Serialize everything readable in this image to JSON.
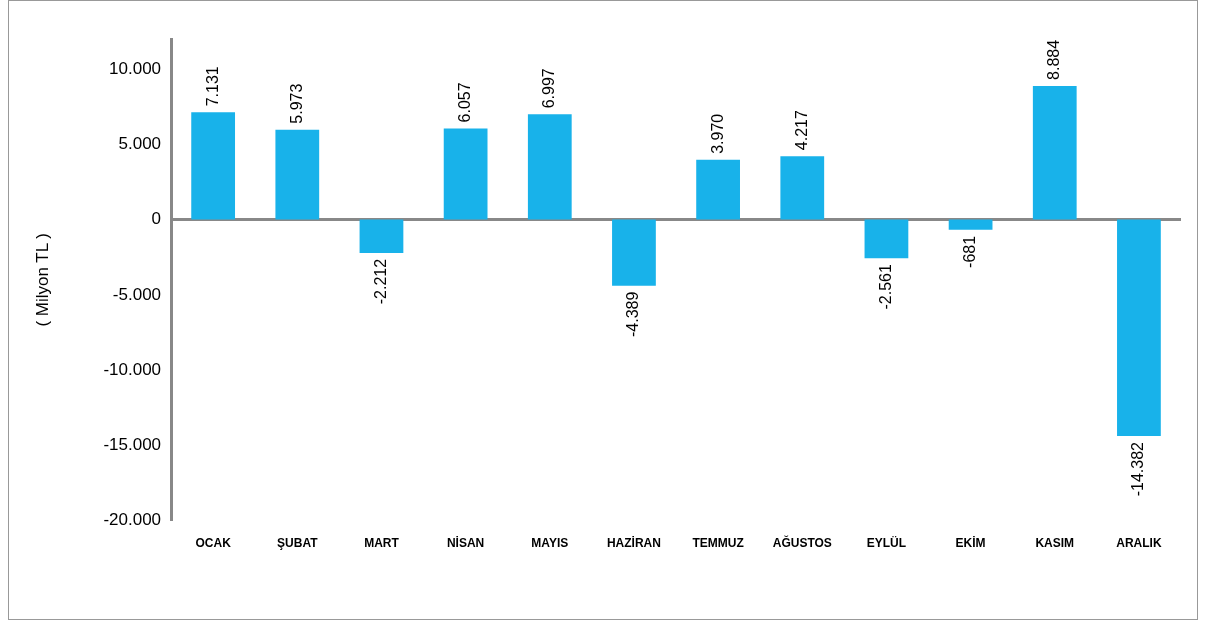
{
  "chart_data": {
    "type": "bar",
    "ylabel": "( Milyon TL )",
    "categories": [
      "OCAK",
      "ŞUBAT",
      "MART",
      "NİSAN",
      "MAYIS",
      "HAZİRAN",
      "TEMMUZ",
      "AĞUSTOS",
      "EYLÜL",
      "EKİM",
      "KASIM",
      "ARALIK"
    ],
    "values": [
      7131,
      5973,
      -2212,
      6057,
      6997,
      -4389,
      3970,
      4217,
      -2561,
      -681,
      8884,
      -14382
    ],
    "value_labels": [
      "7.131",
      "5.973",
      "-2.212",
      "6.057",
      "6.997",
      "-4.389",
      "3.970",
      "4.217",
      "-2.561",
      "-681",
      "8.884",
      "-14.382"
    ],
    "color": "#18b2ea",
    "ylim": [
      -20000,
      12000
    ],
    "yticks": [
      {
        "value": -20000,
        "label": "-20.000"
      },
      {
        "value": -15000,
        "label": "-15.000"
      },
      {
        "value": -10000,
        "label": "-10.000"
      },
      {
        "value": -5000,
        "label": "-5.000"
      },
      0,
      {
        "value": 5000,
        "label": "5.000"
      },
      {
        "value": 10000,
        "label": "10.000"
      }
    ],
    "ref_lines": [
      {
        "axis": "y",
        "value": 0,
        "color": "#888888"
      }
    ],
    "grid": false,
    "legend": false
  }
}
